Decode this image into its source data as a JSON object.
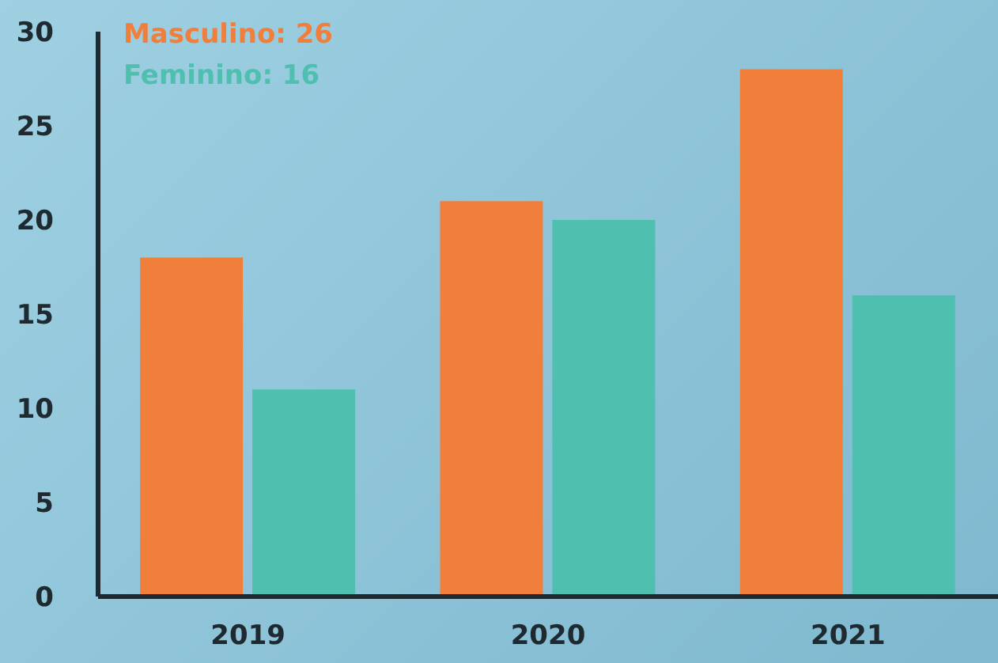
{
  "chart_data": {
    "type": "bar",
    "categories": [
      "2019",
      "2020",
      "2021"
    ],
    "series": [
      {
        "name": "Masculino: 26",
        "color": "#f07f3c",
        "values": [
          18,
          21,
          28
        ]
      },
      {
        "name": "Feminino: 16",
        "color": "#4fbfb0",
        "values": [
          11,
          20,
          16
        ]
      }
    ],
    "ylim": [
      0,
      30
    ],
    "yticks": [
      0,
      5,
      10,
      15,
      20,
      25,
      30
    ],
    "grid": false,
    "legend": "top left"
  }
}
